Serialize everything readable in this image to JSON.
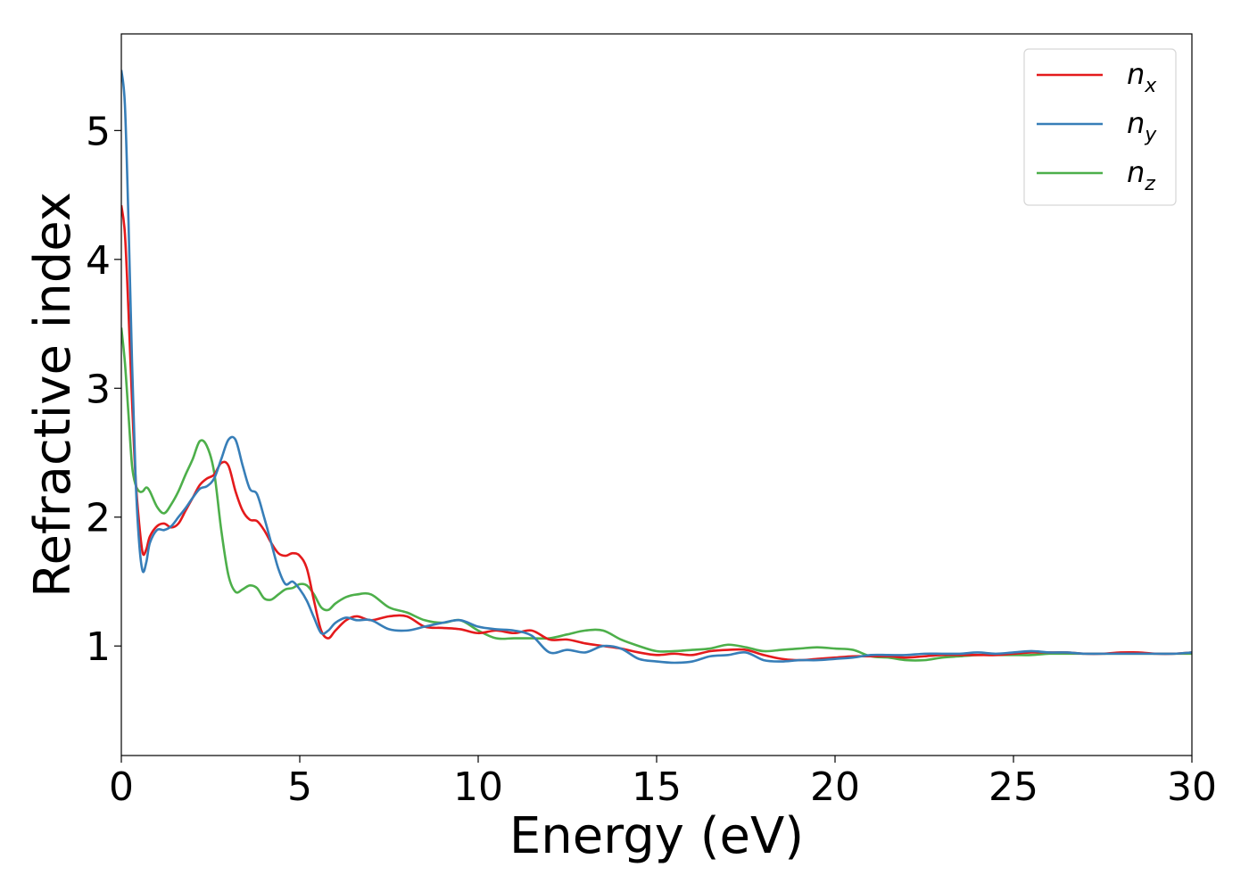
{
  "chart_data": {
    "type": "line",
    "xlabel": "Energy (eV)",
    "ylabel": "Refractive index",
    "xlim": [
      0,
      30
    ],
    "ylim": [
      0.15,
      5.75
    ],
    "xticks": [
      0,
      5,
      10,
      15,
      20,
      25,
      30
    ],
    "xtick_labels": [
      "0",
      "5",
      "10",
      "15",
      "20",
      "25",
      "30"
    ],
    "yticks": [
      1,
      2,
      3,
      4,
      5
    ],
    "ytick_labels": [
      "1",
      "2",
      "3",
      "4",
      "5"
    ],
    "grid": false,
    "legend_position": "top-right",
    "series": [
      {
        "name": "n",
        "subscript": "x",
        "color": "#e41a1c",
        "x": [
          0,
          0.1,
          0.2,
          0.3,
          0.4,
          0.5,
          0.6,
          0.7,
          0.8,
          1.0,
          1.2,
          1.4,
          1.6,
          1.8,
          2.0,
          2.2,
          2.4,
          2.6,
          2.8,
          3.0,
          3.2,
          3.4,
          3.6,
          3.8,
          4.0,
          4.2,
          4.4,
          4.6,
          4.8,
          5.0,
          5.2,
          5.4,
          5.6,
          5.8,
          6.0,
          6.3,
          6.6,
          7.0,
          7.5,
          8.0,
          8.5,
          9.0,
          9.5,
          10,
          10.5,
          11,
          11.5,
          12,
          12.5,
          13,
          13.5,
          14,
          14.5,
          15,
          15.5,
          16,
          16.5,
          17,
          17.5,
          18,
          18.5,
          19,
          19.5,
          20,
          20.5,
          21,
          21.5,
          22,
          22.5,
          23,
          23.5,
          24,
          24.5,
          25,
          25.5,
          26,
          26.5,
          27,
          27.5,
          28,
          28.5,
          29,
          29.5,
          30
        ],
        "values": [
          4.42,
          4.2,
          3.6,
          2.9,
          2.3,
          1.95,
          1.72,
          1.75,
          1.85,
          1.93,
          1.95,
          1.92,
          1.95,
          2.05,
          2.15,
          2.25,
          2.3,
          2.33,
          2.42,
          2.4,
          2.2,
          2.05,
          1.98,
          1.97,
          1.9,
          1.8,
          1.72,
          1.7,
          1.72,
          1.7,
          1.6,
          1.35,
          1.12,
          1.06,
          1.12,
          1.2,
          1.23,
          1.2,
          1.23,
          1.23,
          1.15,
          1.14,
          1.13,
          1.1,
          1.12,
          1.1,
          1.12,
          1.05,
          1.05,
          1.02,
          1.0,
          0.98,
          0.95,
          0.93,
          0.94,
          0.93,
          0.96,
          0.97,
          0.97,
          0.93,
          0.9,
          0.89,
          0.9,
          0.91,
          0.92,
          0.92,
          0.92,
          0.91,
          0.92,
          0.93,
          0.93,
          0.93,
          0.93,
          0.94,
          0.95,
          0.95,
          0.95,
          0.94,
          0.94,
          0.95,
          0.95,
          0.94,
          0.94,
          0.95
        ]
      },
      {
        "name": "n",
        "subscript": "y",
        "color": "#377eb8",
        "x": [
          0,
          0.1,
          0.2,
          0.3,
          0.4,
          0.5,
          0.6,
          0.7,
          0.8,
          1.0,
          1.2,
          1.4,
          1.6,
          1.8,
          2.0,
          2.2,
          2.4,
          2.6,
          2.8,
          3.0,
          3.2,
          3.4,
          3.6,
          3.8,
          4.0,
          4.2,
          4.4,
          4.6,
          4.8,
          5.0,
          5.2,
          5.4,
          5.6,
          5.8,
          6.0,
          6.3,
          6.6,
          7.0,
          7.5,
          8.0,
          8.5,
          9.0,
          9.5,
          10,
          10.5,
          11,
          11.5,
          12,
          12.5,
          13,
          13.5,
          14,
          14.5,
          15,
          15.5,
          16,
          16.5,
          17,
          17.5,
          18,
          18.5,
          19,
          19.5,
          20,
          20.5,
          21,
          21.5,
          22,
          22.5,
          23,
          23.5,
          24,
          24.5,
          25,
          25.5,
          26,
          26.5,
          27,
          27.5,
          28,
          28.5,
          29,
          29.5,
          30
        ],
        "values": [
          5.47,
          5.2,
          4.3,
          3.2,
          2.3,
          1.8,
          1.58,
          1.65,
          1.8,
          1.9,
          1.9,
          1.93,
          2.0,
          2.07,
          2.15,
          2.22,
          2.24,
          2.3,
          2.45,
          2.6,
          2.6,
          2.4,
          2.22,
          2.18,
          2.0,
          1.8,
          1.6,
          1.48,
          1.5,
          1.44,
          1.35,
          1.22,
          1.1,
          1.12,
          1.18,
          1.22,
          1.2,
          1.2,
          1.13,
          1.12,
          1.15,
          1.18,
          1.2,
          1.15,
          1.13,
          1.12,
          1.08,
          0.95,
          0.97,
          0.95,
          1.0,
          0.98,
          0.9,
          0.88,
          0.87,
          0.88,
          0.92,
          0.93,
          0.95,
          0.89,
          0.88,
          0.89,
          0.89,
          0.9,
          0.91,
          0.93,
          0.93,
          0.93,
          0.94,
          0.94,
          0.94,
          0.95,
          0.94,
          0.95,
          0.96,
          0.95,
          0.95,
          0.94,
          0.94,
          0.94,
          0.94,
          0.94,
          0.94,
          0.95
        ]
      },
      {
        "name": "n",
        "subscript": "z",
        "color": "#4daf4a",
        "x": [
          0,
          0.1,
          0.2,
          0.3,
          0.4,
          0.5,
          0.6,
          0.7,
          0.8,
          1.0,
          1.2,
          1.4,
          1.6,
          1.8,
          2.0,
          2.2,
          2.4,
          2.6,
          2.8,
          3.0,
          3.2,
          3.4,
          3.6,
          3.8,
          4.0,
          4.2,
          4.4,
          4.6,
          4.8,
          5.0,
          5.2,
          5.4,
          5.6,
          5.8,
          6.0,
          6.3,
          6.6,
          7.0,
          7.5,
          8.0,
          8.5,
          9.0,
          9.5,
          10,
          10.5,
          11,
          11.5,
          12,
          12.5,
          13,
          13.5,
          14,
          14.5,
          15,
          15.5,
          16,
          16.5,
          17,
          17.5,
          18,
          18.5,
          19,
          19.5,
          20,
          20.5,
          21,
          21.5,
          22,
          22.5,
          23,
          23.5,
          24,
          24.5,
          25,
          25.5,
          26,
          26.5,
          27,
          27.5,
          28,
          28.5,
          29,
          29.5,
          30
        ],
        "values": [
          3.47,
          3.2,
          2.8,
          2.4,
          2.25,
          2.2,
          2.2,
          2.23,
          2.2,
          2.08,
          2.03,
          2.1,
          2.2,
          2.33,
          2.45,
          2.59,
          2.55,
          2.35,
          1.9,
          1.55,
          1.42,
          1.44,
          1.47,
          1.45,
          1.37,
          1.36,
          1.4,
          1.44,
          1.45,
          1.48,
          1.47,
          1.4,
          1.3,
          1.28,
          1.33,
          1.38,
          1.4,
          1.4,
          1.3,
          1.26,
          1.2,
          1.18,
          1.2,
          1.12,
          1.06,
          1.06,
          1.06,
          1.06,
          1.09,
          1.12,
          1.12,
          1.05,
          1.0,
          0.96,
          0.96,
          0.97,
          0.98,
          1.01,
          0.99,
          0.96,
          0.97,
          0.98,
          0.99,
          0.98,
          0.97,
          0.92,
          0.91,
          0.89,
          0.89,
          0.91,
          0.92,
          0.93,
          0.93,
          0.93,
          0.93,
          0.94,
          0.94,
          0.94,
          0.94,
          0.94,
          0.94,
          0.94,
          0.94,
          0.94
        ]
      }
    ]
  }
}
